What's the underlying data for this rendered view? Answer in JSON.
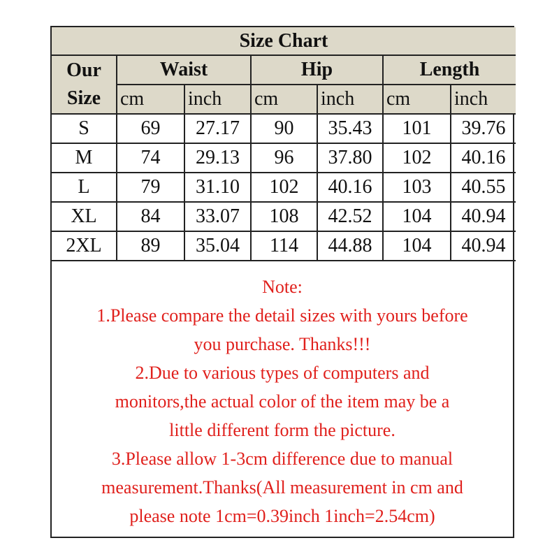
{
  "title": "Size Chart",
  "headers": {
    "size": "Our Size",
    "size_line1": "Our",
    "size_line2": "Size",
    "groups": [
      "Waist",
      "Hip",
      "Length"
    ],
    "units": [
      "cm",
      "inch",
      "cm",
      "inch",
      "cm",
      "inch"
    ]
  },
  "rows": [
    [
      "S",
      "69",
      "27.17",
      "90",
      "35.43",
      "101",
      "39.76"
    ],
    [
      "M",
      "74",
      "29.13",
      "96",
      "37.80",
      "102",
      "40.16"
    ],
    [
      "L",
      "79",
      "31.10",
      "102",
      "40.16",
      "103",
      "40.55"
    ],
    [
      "XL",
      "84",
      "33.07",
      "108",
      "42.52",
      "104",
      "40.94"
    ],
    [
      "2XL",
      "89",
      "35.04",
      "114",
      "44.88",
      "104",
      "40.94"
    ]
  ],
  "note": {
    "heading": "Note:",
    "lines": [
      "1.Please compare the detail sizes with yours before",
      "you purchase. Thanks!!!",
      "2.Due to various types of computers and",
      "monitors,the actual color of the item may be a",
      "little different form the picture.",
      "3.Please allow 1-3cm difference due to manual",
      "measurement.Thanks(All measurement in cm and",
      "please note 1cm=0.39inch 1inch=2.54cm)"
    ]
  },
  "colors": {
    "header_bg": "#ddd9c9",
    "note_text": "#e0201c"
  }
}
